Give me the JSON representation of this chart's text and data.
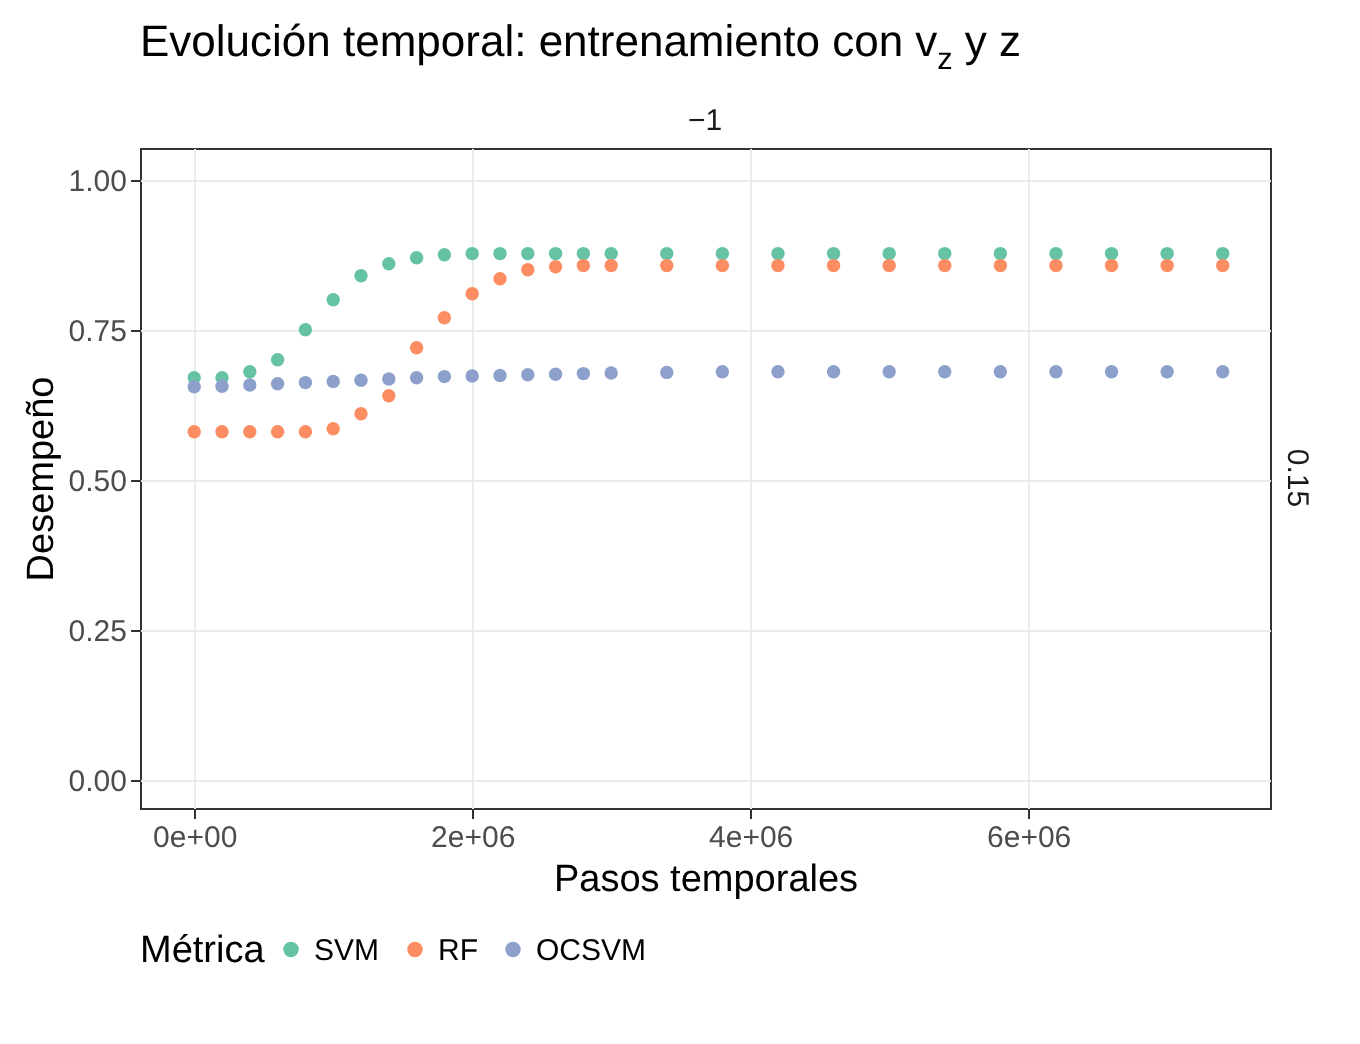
{
  "chart_data": {
    "type": "scatter",
    "title": "Evolución temporal: entrenamiento con v$_{z}$ y z",
    "xlabel": "Pasos temporales",
    "ylabel": "Desempeño",
    "legend_title": "Métrica",
    "annotations": [
      "−1",
      "0.15"
    ],
    "x": [
      0,
      200000,
      400000,
      600000,
      800000,
      1000000,
      1200000,
      1400000,
      1600000,
      1800000,
      2000000,
      2200000,
      2400000,
      2600000,
      2800000,
      3000000,
      3400000,
      3800000,
      4200000,
      4600000,
      5000000,
      5400000,
      5800000,
      6200000,
      6600000,
      7000000,
      7400000
    ],
    "series": [
      {
        "name": "SVM",
        "color": "#66c2a5",
        "values": [
          0.67,
          0.67,
          0.68,
          0.7,
          0.75,
          0.8,
          0.84,
          0.86,
          0.87,
          0.875,
          0.877,
          0.877,
          0.877,
          0.877,
          0.877,
          0.877,
          0.877,
          0.877,
          0.877,
          0.877,
          0.877,
          0.877,
          0.877,
          0.877,
          0.877,
          0.877,
          0.877
        ]
      },
      {
        "name": "RF",
        "color": "#fc8d62",
        "values": [
          0.58,
          0.58,
          0.58,
          0.58,
          0.58,
          0.585,
          0.61,
          0.64,
          0.72,
          0.77,
          0.81,
          0.835,
          0.85,
          0.855,
          0.857,
          0.857,
          0.857,
          0.857,
          0.857,
          0.857,
          0.857,
          0.857,
          0.857,
          0.857,
          0.857,
          0.857,
          0.857
        ]
      },
      {
        "name": "OCSVM",
        "color": "#8da0cb",
        "values": [
          0.655,
          0.656,
          0.658,
          0.66,
          0.662,
          0.664,
          0.666,
          0.668,
          0.67,
          0.672,
          0.673,
          0.674,
          0.675,
          0.676,
          0.677,
          0.678,
          0.679,
          0.68,
          0.68,
          0.68,
          0.68,
          0.68,
          0.68,
          0.68,
          0.68,
          0.68,
          0.68
        ]
      }
    ],
    "xlim": [
      -390000,
      7740000
    ],
    "xticks": [
      {
        "value": 0,
        "label": "0e+00"
      },
      {
        "value": 2000000,
        "label": "2e+06"
      },
      {
        "value": 4000000,
        "label": "4e+06"
      },
      {
        "value": 6000000,
        "label": "6e+06"
      }
    ],
    "ylim": [
      -0.047,
      1.053
    ],
    "yticks": [
      {
        "value": 0,
        "label": "0.00"
      },
      {
        "value": 0.25,
        "label": "0.25"
      },
      {
        "value": 0.5,
        "label": "0.50"
      },
      {
        "value": 0.75,
        "label": "0.75"
      },
      {
        "value": 1,
        "label": "1.00"
      }
    ],
    "grid": true,
    "legend": "bottom",
    "marker": "circle"
  }
}
